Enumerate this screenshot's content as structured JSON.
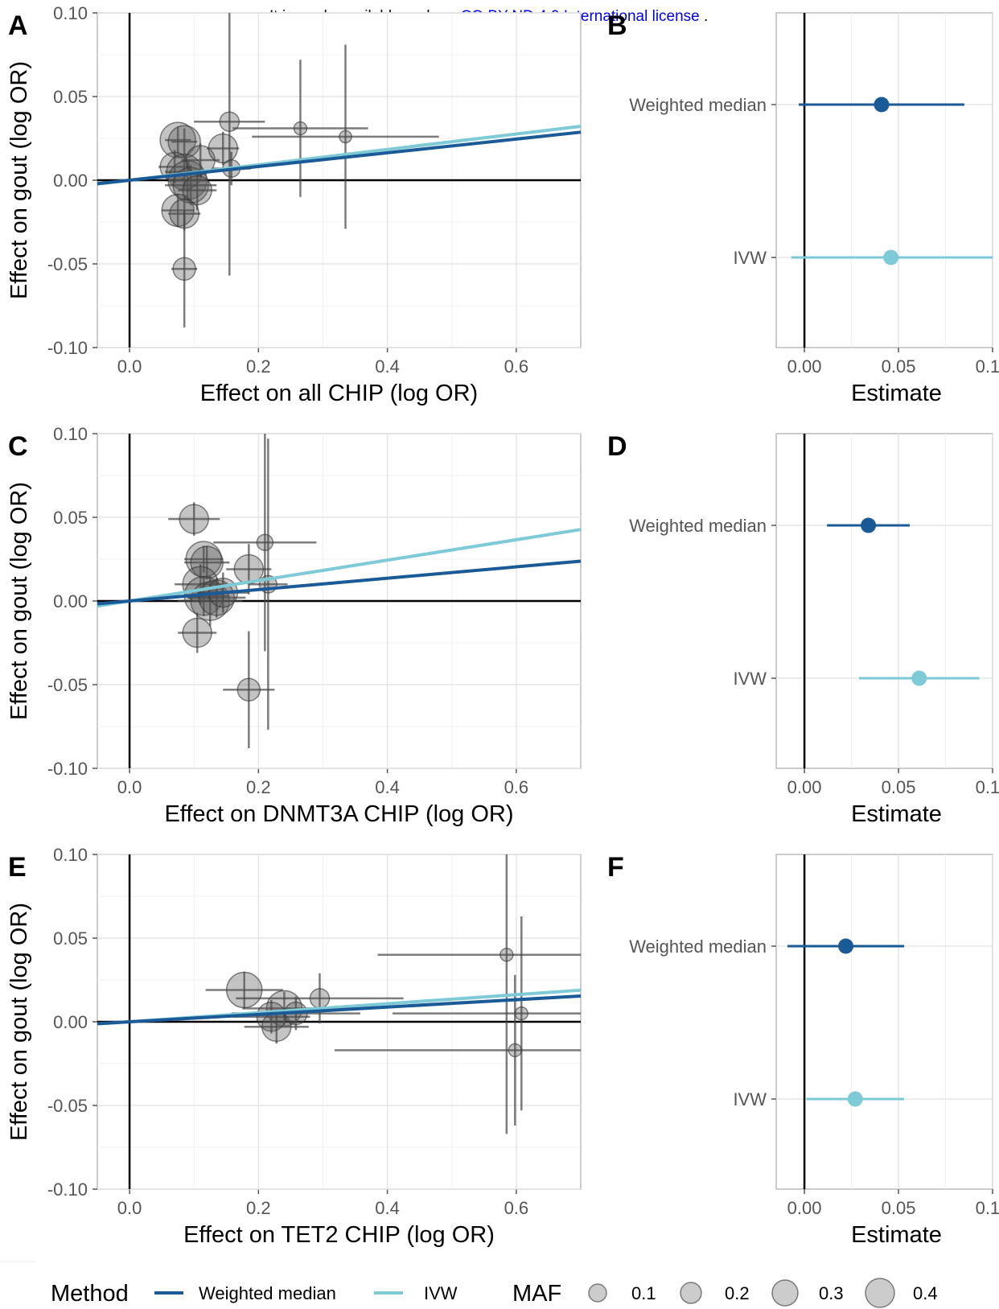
{
  "license": {
    "prefix": "It is made available under a ",
    "link": "CC-BY-ND 4.0 International license",
    "suffix": " ."
  },
  "colors": {
    "weighted_median": "#1a5a96",
    "ivw": "#7ecad6",
    "points": "#444444",
    "panel_border": "#bbbbbb",
    "grid": "#e5e5e5"
  },
  "legend": {
    "method_title": "Method",
    "methods": [
      {
        "label": "Weighted median",
        "color": "#1a5a96"
      },
      {
        "label": "IVW",
        "color": "#7ecad6"
      }
    ],
    "maf_title": "MAF",
    "maf_values": [
      "0.1",
      "0.2",
      "0.3",
      "0.4"
    ]
  },
  "chart_data": [
    {
      "panel": "A",
      "type": "scatter",
      "xlabel": "Effect on all CHIP (log OR)",
      "ylabel": "Effect on gout (log OR)",
      "xlim": [
        -0.05,
        0.7
      ],
      "ylim": [
        -0.1,
        0.1
      ],
      "xticks": [
        "0.0",
        "0.2",
        "0.4",
        "0.6"
      ],
      "yticks": [
        "-0.10",
        "-0.05",
        "0.00",
        "0.05",
        "0.10"
      ],
      "slopes": {
        "weighted_median": 0.041,
        "ivw": 0.046
      },
      "points": [
        {
          "x": 0.075,
          "y": 0.024,
          "xe": 0.02,
          "ye": 0.008,
          "maf": 0.4
        },
        {
          "x": 0.085,
          "y": 0.023,
          "xe": 0.02,
          "ye": 0.008,
          "maf": 0.35
        },
        {
          "x": 0.07,
          "y": 0.008,
          "xe": 0.025,
          "ye": 0.01,
          "maf": 0.3
        },
        {
          "x": 0.085,
          "y": 0.005,
          "xe": 0.03,
          "ye": 0.01,
          "maf": 0.4
        },
        {
          "x": 0.09,
          "y": 0.0,
          "xe": 0.03,
          "ye": 0.012,
          "maf": 0.45
        },
        {
          "x": 0.095,
          "y": -0.003,
          "xe": 0.04,
          "ye": 0.012,
          "maf": 0.4
        },
        {
          "x": 0.11,
          "y": 0.012,
          "xe": 0.03,
          "ye": 0.01,
          "maf": 0.3
        },
        {
          "x": 0.105,
          "y": -0.006,
          "xe": 0.03,
          "ye": 0.012,
          "maf": 0.3
        },
        {
          "x": 0.075,
          "y": -0.018,
          "xe": 0.025,
          "ye": 0.01,
          "maf": 0.35
        },
        {
          "x": 0.085,
          "y": -0.02,
          "xe": 0.025,
          "ye": 0.01,
          "maf": 0.3
        },
        {
          "x": 0.085,
          "y": -0.053,
          "xe": 0.02,
          "ye": 0.035,
          "maf": 0.2
        },
        {
          "x": 0.145,
          "y": 0.019,
          "xe": 0.025,
          "ye": 0.01,
          "maf": 0.3
        },
        {
          "x": 0.155,
          "y": 0.035,
          "xe": 0.055,
          "ye": 0.092,
          "maf": 0.15
        },
        {
          "x": 0.158,
          "y": 0.007,
          "xe": 0.03,
          "ye": 0.01,
          "maf": 0.12
        },
        {
          "x": 0.265,
          "y": 0.031,
          "xe": 0.105,
          "ye": 0.041,
          "maf": 0.05
        },
        {
          "x": 0.335,
          "y": 0.026,
          "xe": 0.145,
          "ye": 0.055,
          "maf": 0.04
        }
      ]
    },
    {
      "panel": "B",
      "type": "scatter",
      "xlabel": "Estimate",
      "xlim": [
        -0.015,
        0.1
      ],
      "xticks": [
        "0.00",
        "0.05",
        "0.10"
      ],
      "categories": [
        "Weighted median",
        "IVW"
      ],
      "estimates": [
        {
          "method": "Weighted median",
          "est": 0.041,
          "lo": -0.003,
          "hi": 0.085
        },
        {
          "method": "IVW",
          "est": 0.046,
          "lo": -0.007,
          "hi": 0.1
        }
      ]
    },
    {
      "panel": "C",
      "type": "scatter",
      "xlabel": "Effect on DNMT3A CHIP (log OR)",
      "ylabel": "Effect on gout (log OR)",
      "xlim": [
        -0.05,
        0.7
      ],
      "ylim": [
        -0.1,
        0.1
      ],
      "xticks": [
        "0.0",
        "0.2",
        "0.4",
        "0.6"
      ],
      "yticks": [
        "-0.10",
        "-0.05",
        "0.00",
        "0.05",
        "0.10"
      ],
      "slopes": {
        "weighted_median": 0.034,
        "ivw": 0.061
      },
      "points": [
        {
          "x": 0.1,
          "y": 0.049,
          "xe": 0.04,
          "ye": 0.01,
          "maf": 0.3
        },
        {
          "x": 0.115,
          "y": 0.025,
          "xe": 0.03,
          "ye": 0.008,
          "maf": 0.4
        },
        {
          "x": 0.12,
          "y": 0.023,
          "xe": 0.035,
          "ye": 0.01,
          "maf": 0.35
        },
        {
          "x": 0.11,
          "y": 0.01,
          "xe": 0.04,
          "ye": 0.012,
          "maf": 0.4
        },
        {
          "x": 0.115,
          "y": 0.003,
          "xe": 0.04,
          "ye": 0.012,
          "maf": 0.45
        },
        {
          "x": 0.125,
          "y": 0.0,
          "xe": 0.05,
          "ye": 0.015,
          "maf": 0.45
        },
        {
          "x": 0.135,
          "y": 0.002,
          "xe": 0.045,
          "ye": 0.012,
          "maf": 0.4
        },
        {
          "x": 0.145,
          "y": 0.005,
          "xe": 0.04,
          "ye": 0.012,
          "maf": 0.3
        },
        {
          "x": 0.105,
          "y": -0.019,
          "xe": 0.03,
          "ye": 0.012,
          "maf": 0.3
        },
        {
          "x": 0.185,
          "y": 0.019,
          "xe": 0.035,
          "ye": 0.015,
          "maf": 0.3
        },
        {
          "x": 0.21,
          "y": 0.035,
          "xe": 0.08,
          "ye": 0.065,
          "maf": 0.1
        },
        {
          "x": 0.215,
          "y": 0.01,
          "xe": 0.03,
          "ye": 0.087,
          "maf": 0.12
        },
        {
          "x": 0.185,
          "y": -0.053,
          "xe": 0.04,
          "ye": 0.035,
          "maf": 0.2
        }
      ]
    },
    {
      "panel": "D",
      "type": "scatter",
      "xlabel": "Estimate",
      "xlim": [
        -0.015,
        0.1
      ],
      "xticks": [
        "0.00",
        "0.05",
        "0.10"
      ],
      "categories": [
        "Weighted median",
        "IVW"
      ],
      "estimates": [
        {
          "method": "Weighted median",
          "est": 0.034,
          "lo": 0.012,
          "hi": 0.056
        },
        {
          "method": "IVW",
          "est": 0.061,
          "lo": 0.029,
          "hi": 0.093
        }
      ]
    },
    {
      "panel": "E",
      "type": "scatter",
      "xlabel": "Effect on TET2 CHIP (log OR)",
      "ylabel": "Effect on gout (log OR)",
      "xlim": [
        -0.05,
        0.7
      ],
      "ylim": [
        -0.1,
        0.1
      ],
      "xticks": [
        "0.0",
        "0.2",
        "0.4",
        "0.6"
      ],
      "yticks": [
        "-0.10",
        "-0.05",
        "0.00",
        "0.05",
        "0.10"
      ],
      "slopes": {
        "weighted_median": 0.022,
        "ivw": 0.027
      },
      "points": [
        {
          "x": 0.178,
          "y": 0.019,
          "xe": 0.06,
          "ye": 0.011,
          "maf": 0.4
        },
        {
          "x": 0.24,
          "y": 0.008,
          "xe": 0.065,
          "ye": 0.01,
          "maf": 0.4
        },
        {
          "x": 0.22,
          "y": 0.003,
          "xe": 0.06,
          "ye": 0.01,
          "maf": 0.3
        },
        {
          "x": 0.228,
          "y": -0.003,
          "xe": 0.05,
          "ye": 0.01,
          "maf": 0.3
        },
        {
          "x": 0.258,
          "y": 0.005,
          "xe": 0.1,
          "ye": 0.01,
          "maf": 0.2
        },
        {
          "x": 0.295,
          "y": 0.014,
          "xe": 0.13,
          "ye": 0.015,
          "maf": 0.15
        },
        {
          "x": 0.585,
          "y": 0.04,
          "xe": 0.2,
          "ye": 0.107,
          "maf": 0.05
        },
        {
          "x": 0.608,
          "y": 0.005,
          "xe": 0.2,
          "ye": 0.058,
          "maf": 0.05
        },
        {
          "x": 0.598,
          "y": -0.017,
          "xe": 0.28,
          "ye": 0.045,
          "maf": 0.05
        }
      ]
    },
    {
      "panel": "F",
      "type": "scatter",
      "xlabel": "Estimate",
      "xlim": [
        -0.015,
        0.1
      ],
      "xticks": [
        "0.00",
        "0.05",
        "0.10"
      ],
      "categories": [
        "Weighted median",
        "IVW"
      ],
      "estimates": [
        {
          "method": "Weighted median",
          "est": 0.022,
          "lo": -0.009,
          "hi": 0.053
        },
        {
          "method": "IVW",
          "est": 0.027,
          "lo": 0.001,
          "hi": 0.053
        }
      ]
    }
  ]
}
